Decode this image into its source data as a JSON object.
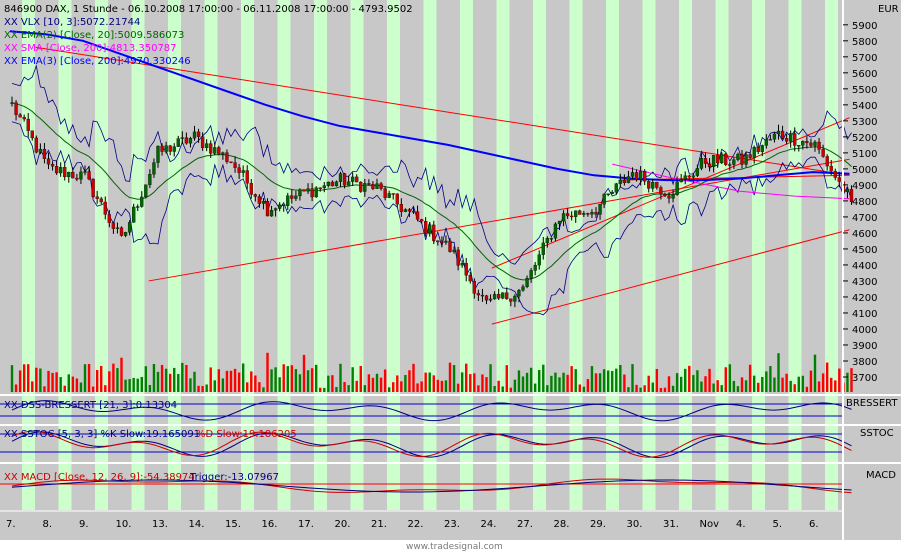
{
  "header": {
    "instrument_label": "846900  DAX, 1 Stunde - 06.10.2008 17:00:00 - 06.11.2008 17:00:00 - 4793.9502",
    "currency": "EUR"
  },
  "legend": [
    {
      "text": "XX VLX [10, 3]:5072.21744",
      "color": "#000080"
    },
    {
      "text": "XX EMA(2) [Close, 20]:5009.586073",
      "color": "#006400"
    },
    {
      "text": "XX SMA [Close, 200]:4813.350787",
      "color": "#ff00ff"
    },
    {
      "text": "XX EMA(3) [Close, 200]:4970.330246",
      "color": "#0000ff"
    }
  ],
  "panels": {
    "dss": {
      "label": "XX DSS-BRESSERT [21, 3]:0.13304",
      "tag": "BRESSERT"
    },
    "sstoc": {
      "label_k": "XX SSTOC [5, 3, 3] %K Slow:19.165091",
      "label_d": "%D Slow:19.186205",
      "tag": "SSTOC"
    },
    "macd": {
      "label_main": "XX MACD [Close, 12, 26, 9]:-54.38974",
      "label_trigger": "Trigger:-13.07967",
      "tag": "MACD"
    }
  },
  "watermark": "www.tradesignal.com",
  "colors": {
    "band_green": "#ccffcc",
    "band_gray": "#c8c8c8",
    "candle_up": "#006400",
    "candle_down": "#cc0000",
    "ema200": "#0000ff",
    "sma200": "#ff00ff",
    "ema20": "#006400",
    "vlx": "#000080",
    "trendline": "#ff0000"
  },
  "chart_data": {
    "type": "candlestick",
    "title": "846900  DAX, 1 Stunde - 06.10.2008 17:00:00 - 06.11.2008 17:00:00 - 4793.9502",
    "currency": "EUR",
    "x_labels": [
      "7.",
      "8.",
      "9.",
      "10.",
      "13.",
      "14.",
      "15.",
      "16.",
      "17.",
      "20.",
      "21.",
      "22.",
      "23.",
      "24.",
      "27.",
      "28.",
      "29.",
      "30.",
      "31.",
      "Nov",
      "4.",
      "5.",
      "6."
    ],
    "y_ticks": [
      3700,
      3800,
      3900,
      4000,
      4100,
      4200,
      4300,
      4400,
      4500,
      4600,
      4700,
      4800,
      4900,
      5000,
      5100,
      5200,
      5300,
      5400,
      5500,
      5600,
      5700,
      5800,
      5900
    ],
    "ylim": [
      3650,
      5980
    ],
    "daily_closes": [
      5400,
      5000,
      4950,
      4550,
      5100,
      5200,
      5050,
      4750,
      4850,
      4930,
      4880,
      4700,
      4500,
      4150,
      4250,
      4700,
      4750,
      4980,
      4850,
      5050,
      5050,
      5220,
      5150,
      4794
    ],
    "ema200": [
      [
        0,
        5860
      ],
      [
        1,
        5840
      ],
      [
        2,
        5800
      ],
      [
        3,
        5720
      ],
      [
        4,
        5640
      ],
      [
        5,
        5560
      ],
      [
        6,
        5480
      ],
      [
        7,
        5400
      ],
      [
        8,
        5330
      ],
      [
        9,
        5270
      ],
      [
        10,
        5230
      ],
      [
        11,
        5190
      ],
      [
        12,
        5150
      ],
      [
        13,
        5100
      ],
      [
        14,
        5050
      ],
      [
        15,
        5000
      ],
      [
        16,
        4960
      ],
      [
        17,
        4940
      ],
      [
        18,
        4930
      ],
      [
        19,
        4930
      ],
      [
        20,
        4940
      ],
      [
        21,
        4960
      ],
      [
        22,
        4980
      ],
      [
        23,
        4970
      ]
    ],
    "sma200": [
      [
        16.5,
        5030
      ],
      [
        18,
        4950
      ],
      [
        20,
        4860
      ],
      [
        21.5,
        4830
      ],
      [
        23,
        4813
      ]
    ],
    "trendlines": [
      {
        "from": [
          0.7,
          5760
        ],
        "to": [
          23.0,
          4960
        ]
      },
      {
        "from": [
          3.8,
          4300
        ],
        "to": [
          23.0,
          5060
        ]
      },
      {
        "from": [
          13.2,
          4380
        ],
        "to": [
          23.0,
          5320
        ]
      },
      {
        "from": [
          13.2,
          4030
        ],
        "to": [
          23.0,
          4620
        ]
      },
      {
        "from": [
          16.7,
          4930
        ],
        "to": [
          23.0,
          4960
        ]
      }
    ]
  }
}
